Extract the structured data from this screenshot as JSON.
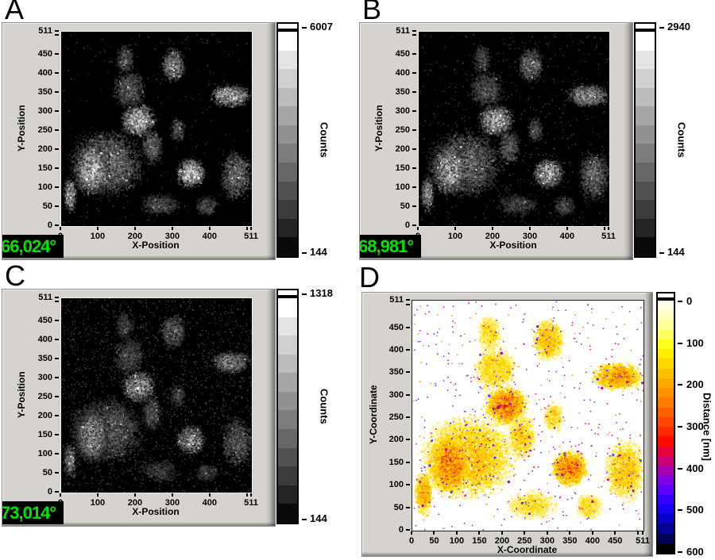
{
  "chart_data": [
    {
      "panel": "A",
      "type": "heatmap",
      "content": "grayscale fluorescence intensity image of adherent cells",
      "x_axis": {
        "label": "X-Position",
        "range": [
          0,
          511
        ],
        "ticks": [
          0,
          100,
          200,
          300,
          400,
          511
        ]
      },
      "y_axis": {
        "label": "Y-Position",
        "range": [
          0,
          511
        ],
        "ticks": [
          0,
          50,
          100,
          150,
          200,
          250,
          300,
          350,
          400,
          450,
          511
        ]
      },
      "colorbar": {
        "label": "Counts",
        "max_label": "6007",
        "min_label": "144",
        "palette": "grayscale"
      },
      "lcd": "66,024°"
    },
    {
      "panel": "B",
      "type": "heatmap",
      "content": "grayscale fluorescence intensity image of adherent cells",
      "x_axis": {
        "label": "X-Position",
        "range": [
          0,
          511
        ],
        "ticks": [
          0,
          100,
          200,
          300,
          400,
          511
        ]
      },
      "y_axis": {
        "label": "Y-Position",
        "range": [
          0,
          511
        ],
        "ticks": [
          0,
          50,
          100,
          150,
          200,
          250,
          300,
          350,
          400,
          450,
          511
        ]
      },
      "colorbar": {
        "label": "Counts",
        "max_label": "2940",
        "min_label": "144",
        "palette": "grayscale"
      },
      "lcd": "68,981°"
    },
    {
      "panel": "C",
      "type": "heatmap",
      "content": "grayscale fluorescence intensity image of adherent cells, noisier and dimmer",
      "x_axis": {
        "label": "X-Position",
        "range": [
          0,
          511
        ],
        "ticks": [
          0,
          100,
          200,
          300,
          400,
          511
        ]
      },
      "y_axis": {
        "label": "Y-Position",
        "range": [
          0,
          511
        ],
        "ticks": [
          0,
          50,
          100,
          150,
          200,
          250,
          300,
          350,
          400,
          450,
          511
        ]
      },
      "colorbar": {
        "label": "Counts",
        "max_label": "1318",
        "min_label": "144",
        "palette": "grayscale"
      },
      "lcd": "73,014°"
    },
    {
      "panel": "D",
      "type": "heatmap",
      "content": "color-coded height/distance map of the same cells, yellow-orange-red on white",
      "x_axis": {
        "label": "X-Coordinate",
        "range": [
          0,
          511
        ],
        "ticks": [
          0,
          50,
          100,
          150,
          200,
          250,
          300,
          350,
          400,
          450,
          511
        ]
      },
      "y_axis": {
        "label": "Y-Coordinate",
        "range": [
          0,
          511
        ],
        "ticks": [
          0,
          50,
          100,
          150,
          200,
          250,
          300,
          350,
          400,
          450,
          511
        ]
      },
      "colorbar": {
        "label": "Distance [nm]",
        "ticks": [
          0,
          100,
          200,
          300,
          400,
          500,
          600
        ],
        "palette": "heat"
      }
    }
  ],
  "style": {
    "panel_gray": "#d6d3ce",
    "lcd_green": "#00e400",
    "lcd_bg": "#000000",
    "grayscale_steps": [
      "#ffffff",
      "#e4e4e4",
      "#d0d0d0",
      "#bcbcbc",
      "#a6a6a6",
      "#929292",
      "#7c7c7c",
      "#676767",
      "#515151",
      "#3b3b3b",
      "#242424",
      "#0a0a0a"
    ],
    "heat_steps": [
      "#ffffe8",
      "#ffffc4",
      "#ffff9a",
      "#ffff64",
      "#ffff1e",
      "#ffee00",
      "#ffd700",
      "#ffc000",
      "#ffa900",
      "#ff9200",
      "#ff7a00",
      "#ff6100",
      "#ff4600",
      "#ff2900",
      "#ff0a00",
      "#e70039",
      "#c90076",
      "#a800b0",
      "#8300e0",
      "#5c00fb",
      "#3400ff",
      "#1500ef",
      "#0800c6",
      "#030394",
      "#010158",
      "#000000"
    ]
  }
}
